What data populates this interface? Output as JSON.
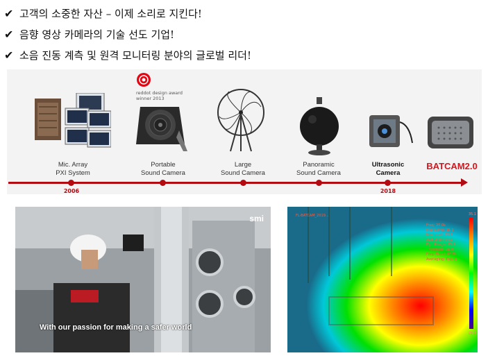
{
  "bullets": [
    {
      "text": "고객의 소중한 자산 – 이제 소리로 지킨다!"
    },
    {
      "text": "음향 영상 카메라의 기술 선도 기업!"
    },
    {
      "text": "소음 진동 계측 및 원격 모니터링 분야의 글로벌 리더!"
    }
  ],
  "bullet_icon": "checkmark-icon",
  "timeline": {
    "award": {
      "line1": "reddot design award",
      "line2": "winner 2013"
    },
    "items": [
      {
        "label_line1": "Mic. Array",
        "label_line2": "PXI System"
      },
      {
        "label_line1": "Portable",
        "label_line2": "Sound Camera"
      },
      {
        "label_line1": "Large",
        "label_line2": "Sound Camera"
      },
      {
        "label_line1": "Panoramic",
        "label_line2": "Sound Camera"
      },
      {
        "label_line1": "Ultrasonic",
        "label_line2": "Camera"
      },
      {
        "label_line1": "BATCAM2.0",
        "label_line2": ""
      }
    ],
    "years": [
      "2006",
      "2018"
    ],
    "accent_color": "#b30b12",
    "brand_color": "#d9141c"
  },
  "photo_left": {
    "caption": "With our passion for making a safer world",
    "logo": "smi"
  },
  "photo_right": {
    "title": "FL-BATCAM_2019...",
    "info": [
      "Freq: 20.0k",
      "Max Level: 35.1",
      "Min Level: 25.2",
      "Avg Level: 30.1",
      "Dyn Range: 15.1",
      "Threshold: 31.0",
      "Freq. Band: 8000",
      "Averaging: Exp. 1"
    ],
    "scale_top": "35.1",
    "scale_bottom": "25.2"
  }
}
